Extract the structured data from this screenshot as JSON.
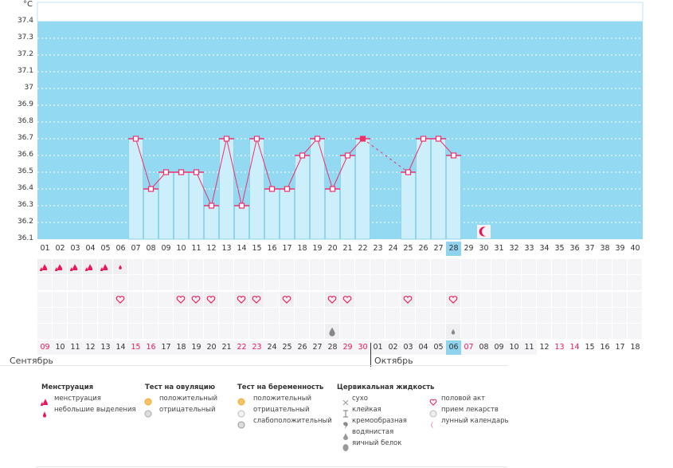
{
  "chart_data": {
    "type": "bar",
    "unit": "°C",
    "ylim": [
      36.1,
      37.4
    ],
    "yticks": [
      "36.1",
      "36.2",
      "36.3",
      "36.4",
      "36.5",
      "36.6",
      "36.7",
      "36.8",
      "36.9",
      "37",
      "37.1",
      "37.2",
      "37.3",
      "37.4"
    ],
    "cycle_days": [
      "01",
      "02",
      "03",
      "04",
      "05",
      "06",
      "07",
      "08",
      "09",
      "10",
      "11",
      "12",
      "13",
      "14",
      "15",
      "16",
      "17",
      "18",
      "19",
      "20",
      "21",
      "22",
      "23",
      "24",
      "25",
      "26",
      "27",
      "28",
      "29",
      "30",
      "31",
      "32",
      "33",
      "34",
      "35",
      "36",
      "37",
      "38",
      "39",
      "40"
    ],
    "temperatures": [
      null,
      null,
      null,
      null,
      null,
      null,
      36.7,
      36.4,
      36.5,
      36.5,
      36.5,
      36.3,
      36.7,
      36.3,
      36.7,
      36.4,
      36.4,
      36.6,
      36.7,
      36.4,
      36.6,
      36.7,
      null,
      null,
      36.5,
      36.7,
      36.7,
      36.6,
      null,
      null,
      null,
      null,
      null,
      null,
      null,
      null,
      null,
      null,
      null,
      null
    ],
    "filled_marker_day": 22,
    "current_day": 28,
    "colors": {
      "plot_bg": "#94d9f2",
      "bar": "#cdeefb",
      "line": "#f0306a"
    }
  },
  "rows": {
    "menstruation": {
      "1": "heavy",
      "2": "heavy",
      "3": "heavy",
      "4": "heavy",
      "5": "heavy",
      "6": "light"
    },
    "intercourse_days": [
      6,
      10,
      11,
      12,
      14,
      15,
      17,
      20,
      21,
      25,
      28
    ],
    "cervical": {
      "20": "egg-white",
      "28": "watery"
    },
    "moon_day": 30
  },
  "dates": [
    "09",
    "10",
    "11",
    "12",
    "13",
    "14",
    "15",
    "16",
    "17",
    "18",
    "19",
    "20",
    "21",
    "22",
    "23",
    "24",
    "25",
    "26",
    "27",
    "28",
    "29",
    "30",
    "01",
    "02",
    "03",
    "04",
    "05",
    "06",
    "07",
    "08",
    "09",
    "10",
    "11",
    "12",
    "13",
    "14",
    "15",
    "16",
    "17",
    "18"
  ],
  "red_date_indices": [
    0,
    6,
    7,
    13,
    14,
    20,
    21,
    28,
    34,
    35
  ],
  "months": {
    "first": "Сентябрь",
    "second": "Октябрь"
  },
  "legend": {
    "menstruation": {
      "title": "Менструация",
      "items": [
        "менструация",
        "небольшие выделения"
      ]
    },
    "ovulation": {
      "title": "Тест на овуляцию",
      "items": [
        "положительный",
        "отрицательный"
      ]
    },
    "pregnancy": {
      "title": "Тест на беременность",
      "items": [
        "положительный",
        "отрицательный",
        "слабоположительный"
      ]
    },
    "cervical": {
      "title": "Цервикальная жидкость",
      "items": [
        "сухо",
        "клейкая",
        "кремообразная",
        "водянистая",
        "яичный белок"
      ]
    },
    "other": {
      "items": [
        "половой акт",
        "прием лекарств",
        "лунный календарь"
      ]
    }
  }
}
